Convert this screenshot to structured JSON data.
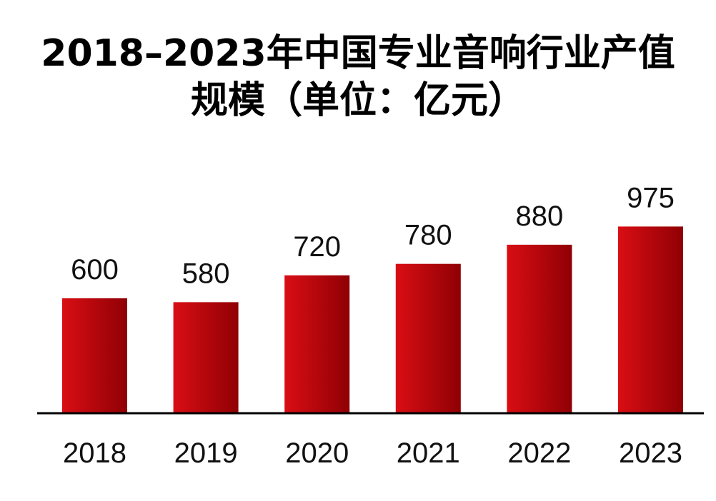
{
  "chart_data": {
    "type": "bar",
    "title": "2018–2023年中国专业音响行业产值规模（单位：亿元）",
    "title_lines": [
      "2018–2023年中国专业音响行业产值",
      "规模（单位：亿元）"
    ],
    "categories": [
      "2018",
      "2019",
      "2020",
      "2021",
      "2022",
      "2023"
    ],
    "values": [
      600,
      580,
      720,
      780,
      880,
      975
    ],
    "data_labels": [
      "600",
      "580",
      "720",
      "780",
      "880",
      "975"
    ],
    "xlabel": "",
    "ylabel": "",
    "ylim": [
      0,
      1000
    ],
    "grid": false,
    "legend": "none",
    "colors": {
      "bar_light": "#d90e14",
      "bar_dark": "#8f0004",
      "axis": "#000000",
      "text": "#111111"
    }
  }
}
